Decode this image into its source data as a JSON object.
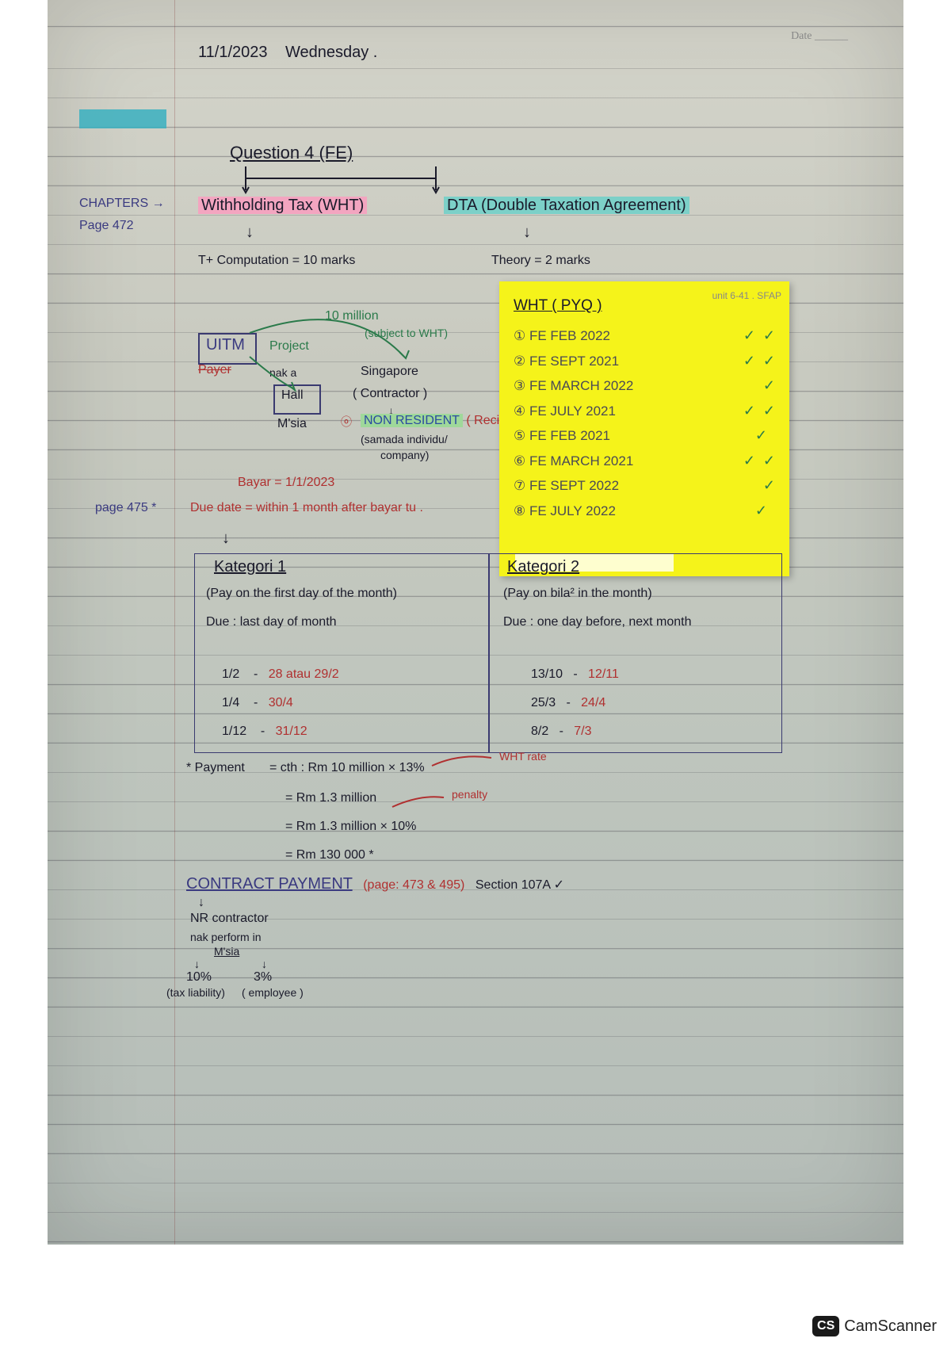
{
  "meta": {
    "date_label": "Date ______",
    "date": "11/1/2023",
    "day": "Wednesday ."
  },
  "header": {
    "question": "Question 4 (FE)"
  },
  "chapters": {
    "label": "CHAPTERS →",
    "page_ref": "Page 472",
    "left_title": "Withholding Tax (WHT)",
    "right_title": "DTA (Double Taxation Agreement)",
    "left_sub": "T+ Computation = 10 marks",
    "right_sub": "Theory     = 2 marks"
  },
  "diagram": {
    "uitm": "UITM",
    "payer": "Payer",
    "project": "Project",
    "nak_note": "nak a",
    "hall": "Hall",
    "msia": "M'sia",
    "ten_mil": "10 million",
    "subject": "(subject to WHT)",
    "singapore": "Singapore",
    "contractor": "( Contractor )",
    "nr": "NON RESIDENT",
    "recip": "( Recipie",
    "nr_note1": "(samada individu/",
    "nr_note2": "company)",
    "bayar": "Bayar = 1/1/2023",
    "page475": "page 475 *",
    "due": "Due date = within 1 month after bayar tu ."
  },
  "sticky": {
    "title": "WHT ( PYQ )",
    "corner": "unit 6-41 . SFAP",
    "items": [
      {
        "n": "①",
        "label": "FE  FEB 2022",
        "chk": "✓",
        "chk2": "✓"
      },
      {
        "n": "②",
        "label": "FE  SEPT 2021",
        "chk": "✓",
        "chk2": "✓"
      },
      {
        "n": "③",
        "label": "FE  MARCH 2022",
        "chk": "",
        "chk2": "✓"
      },
      {
        "n": "④",
        "label": "FE  JULY 2021",
        "chk": "✓",
        "chk2": "✓"
      },
      {
        "n": "⑤",
        "label": "FE  FEB 2021",
        "chk": "✓",
        "chk2": ""
      },
      {
        "n": "⑥",
        "label": "FE  MARCH 2021",
        "chk": "✓",
        "chk2": "✓"
      },
      {
        "n": "⑦",
        "label": "FE  SEPT 2022",
        "chk": "",
        "chk2": "✓"
      },
      {
        "n": "⑧",
        "label": "FE  JULY 2022",
        "chk": "✓",
        "chk2": ""
      }
    ]
  },
  "kategori": {
    "k1_title": "Kategori 1",
    "k1_desc": "(Pay on the first day of the month)",
    "k1_due": "Due : last day of month",
    "k2_title": "Kategori 2",
    "k2_desc": "(Pay on bila² in the month)",
    "k2_due": "Due : one day before, next month",
    "rows": [
      {
        "l1": "1/2",
        "l2": "28 atau 29/2",
        "r1": "13/10",
        "r2": "12/11"
      },
      {
        "l1": "1/4",
        "l2": "30/4",
        "r1": "25/3",
        "r2": "24/4"
      },
      {
        "l1": "1/12",
        "l2": "31/12",
        "r1": "8/2",
        "r2": "7/3"
      }
    ]
  },
  "payment": {
    "star": "* Payment",
    "line1": "= cth : Rm 10 million × 13%",
    "note1": "WHT rate",
    "line2": "= Rm 1.3 million",
    "note2": "penalty",
    "line3": "= Rm 1.3 million × 10%",
    "line4": "= Rm 130 000 *"
  },
  "contract": {
    "title": "CONTRACT PAYMENT",
    "pages": "(page: 473 & 495)",
    "section": "Section 107A ✓",
    "nr": "NR contractor",
    "perf": "nak perform in",
    "msia": "M'sia",
    "left_pct": "10%",
    "left_lbl": "(tax liability)",
    "right_pct": "3%",
    "right_lbl": "( employee )"
  },
  "watermark": {
    "badge": "CS",
    "text": "CamScanner"
  },
  "colors": {
    "paper": "#c8cac0",
    "sticky": "#f5f31a",
    "ink": "#1a1a2a",
    "blue": "#2b4aa0",
    "red": "#b03030",
    "green": "#2a7a4a",
    "pink_hl": "#f3a5c0",
    "teal_hl": "#7cd0c8",
    "blue_hl": "#3ab0c0"
  }
}
